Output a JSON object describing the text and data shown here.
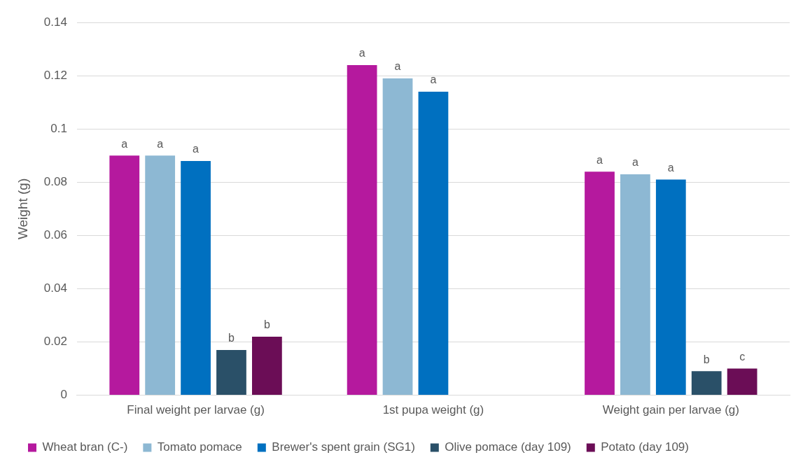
{
  "chart_data": {
    "type": "bar",
    "ylabel": "Weight (g)",
    "categories": [
      "Final weight per larvae (g)",
      "1st pupa weight (g)",
      "Weight gain per larvae (g)"
    ],
    "series": [
      {
        "name": "Wheat bran (C-)",
        "color": "#b5199e",
        "values": [
          0.09,
          0.124,
          0.084
        ],
        "value_labels": [
          "a",
          "a",
          "a"
        ]
      },
      {
        "name": "Tomato pomace",
        "color": "#8db8d3",
        "values": [
          0.09,
          0.119,
          0.083
        ],
        "value_labels": [
          "a",
          "a",
          "a"
        ]
      },
      {
        "name": "Brewer's spent grain (SG1)",
        "color": "#0070c0",
        "values": [
          0.088,
          0.114,
          0.081
        ],
        "value_labels": [
          "a",
          "a",
          "a"
        ]
      },
      {
        "name": "Olive pomace (day 109)",
        "color": "#2a5068",
        "values": [
          0.017,
          null,
          0.009
        ],
        "value_labels": [
          "b",
          null,
          "b"
        ]
      },
      {
        "name": "Potato (day 109)",
        "color": "#6b0d56",
        "values": [
          0.022,
          null,
          0.01
        ],
        "value_labels": [
          "b",
          null,
          "c"
        ]
      }
    ],
    "ylim": [
      0,
      0.14
    ],
    "yticks": [
      0,
      0.02,
      0.04,
      0.06,
      0.08,
      0.1,
      0.12,
      0.14
    ],
    "grid": "y",
    "legend": "bottom"
  }
}
